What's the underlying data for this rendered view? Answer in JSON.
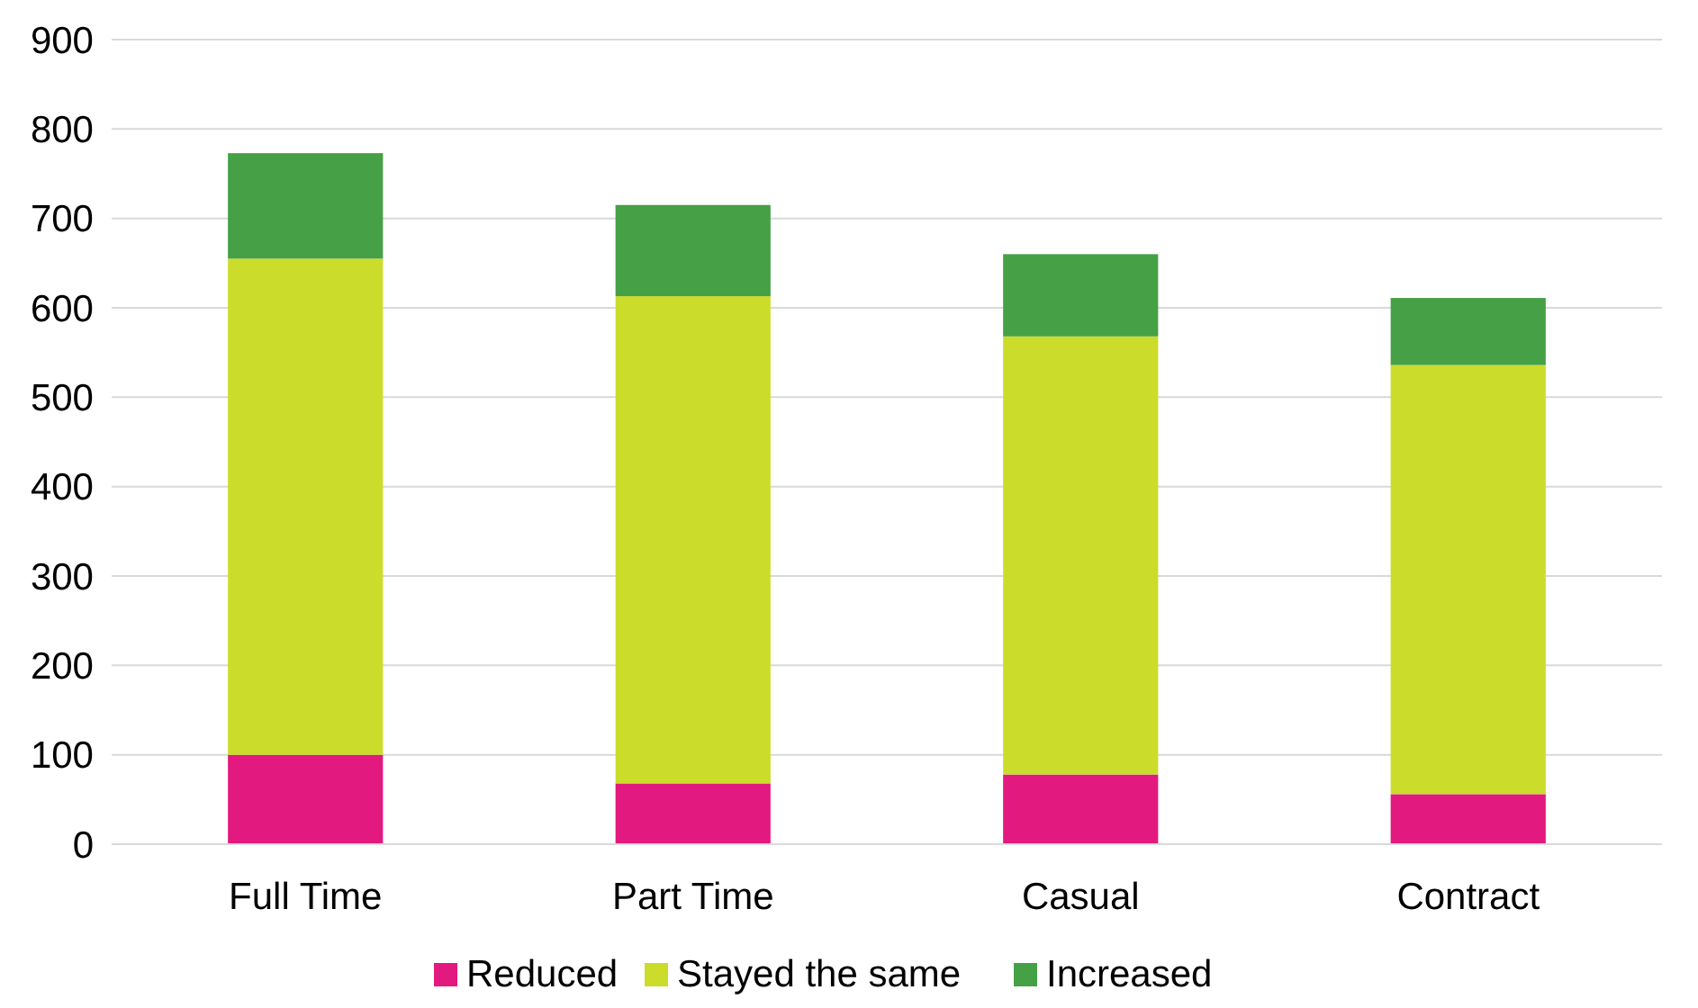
{
  "chart_data": {
    "type": "bar",
    "stacked": true,
    "categories": [
      "Full Time",
      "Part Time",
      "Casual",
      "Contract"
    ],
    "series": [
      {
        "name": "Reduced",
        "color": "#e2197f",
        "values": [
          100,
          68,
          78,
          56
        ]
      },
      {
        "name": "Stayed the same",
        "color": "#cbdc2b",
        "values": [
          555,
          545,
          490,
          480
        ]
      },
      {
        "name": "Increased",
        "color": "#46a046",
        "values": [
          118,
          102,
          92,
          75
        ]
      }
    ],
    "ylim": [
      0,
      900
    ],
    "yticks": [
      0,
      100,
      200,
      300,
      400,
      500,
      600,
      700,
      800,
      900
    ],
    "grid": "y",
    "legend": "bottom"
  }
}
